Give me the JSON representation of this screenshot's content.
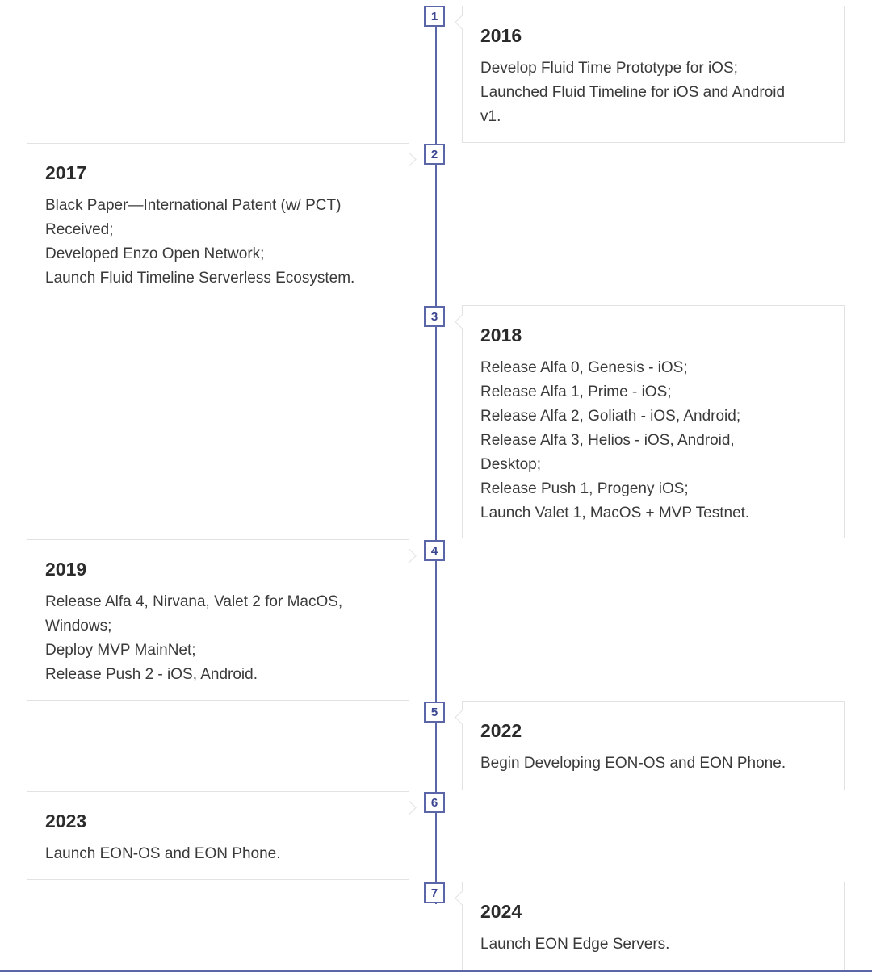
{
  "timeline": {
    "items": [
      {
        "index": "1",
        "year": "2016",
        "side": "right",
        "lines": [
          "Develop Fluid Time Prototype for iOS;",
          "Launched Fluid Timeline for iOS and Android",
          "v1."
        ]
      },
      {
        "index": "2",
        "year": "2017",
        "side": "left",
        "lines": [
          "Black Paper—International Patent (w/ PCT)",
          "Received;",
          "Developed Enzo Open Network;",
          "Launch Fluid Timeline Serverless Ecosystem."
        ]
      },
      {
        "index": "3",
        "year": "2018",
        "side": "right",
        "lines": [
          "Release Alfa 0, Genesis - iOS;",
          "Release Alfa 1, Prime - iOS;",
          "Release Alfa 2, Goliath - iOS, Android;",
          "Release Alfa 3, Helios - iOS, Android,",
          "Desktop;",
          "Release Push 1, Progeny iOS;",
          "Launch Valet 1, MacOS + MVP Testnet."
        ]
      },
      {
        "index": "4",
        "year": "2019",
        "side": "left",
        "lines": [
          "Release Alfa 4, Nirvana, Valet 2 for MacOS,",
          "Windows;",
          "Deploy MVP MainNet;",
          "Release Push 2 - iOS, Android."
        ]
      },
      {
        "index": "5",
        "year": "2022",
        "side": "right",
        "lines": [
          "Begin Developing EON-OS and EON Phone."
        ]
      },
      {
        "index": "6",
        "year": "2023",
        "side": "left",
        "lines": [
          "Launch EON-OS and EON Phone."
        ]
      },
      {
        "index": "7",
        "year": "2024",
        "side": "right",
        "lines": [
          "Launch EON Edge Servers."
        ]
      }
    ]
  },
  "colors": {
    "accent": "#5a66a8",
    "card_border": "#e2e2e2",
    "text": "#3a3a3a"
  }
}
